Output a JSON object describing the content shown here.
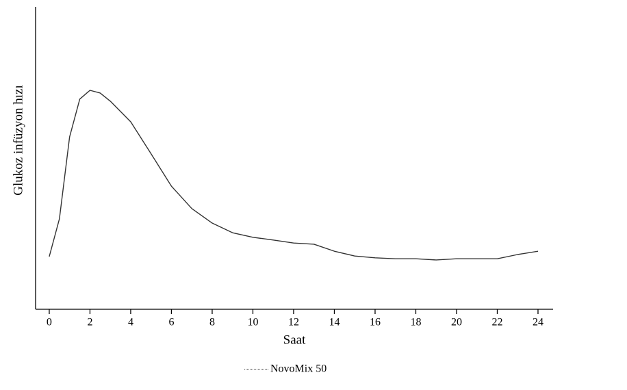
{
  "chart_data": {
    "type": "line",
    "x_label": "Saat",
    "y_label": "Glukoz infüzyon hızı",
    "x": [
      0,
      0.5,
      1,
      1.5,
      2,
      2.5,
      3,
      4,
      5,
      6,
      7,
      8,
      9,
      10,
      11,
      12,
      13,
      14,
      15,
      16,
      17,
      18,
      19,
      20,
      21,
      22,
      23,
      24
    ],
    "series": [
      {
        "name": "NovoMix 50",
        "color": "#333333",
        "values": [
          17.4,
          29.9,
          57.0,
          69.5,
          72.4,
          71.5,
          68.8,
          62.0,
          51.4,
          40.7,
          33.3,
          28.5,
          25.3,
          23.8,
          22.9,
          21.9,
          21.5,
          19.2,
          17.6,
          17.0,
          16.7,
          16.7,
          16.3,
          16.7,
          16.7,
          16.7,
          18.1,
          19.2
        ]
      }
    ],
    "xlim": [
      -0.67,
      24.74
    ],
    "ylim": [
      0,
      100
    ],
    "xticks": [
      0,
      2,
      4,
      6,
      8,
      10,
      12,
      14,
      16,
      18,
      20,
      22,
      24
    ],
    "legend": "bottom"
  }
}
